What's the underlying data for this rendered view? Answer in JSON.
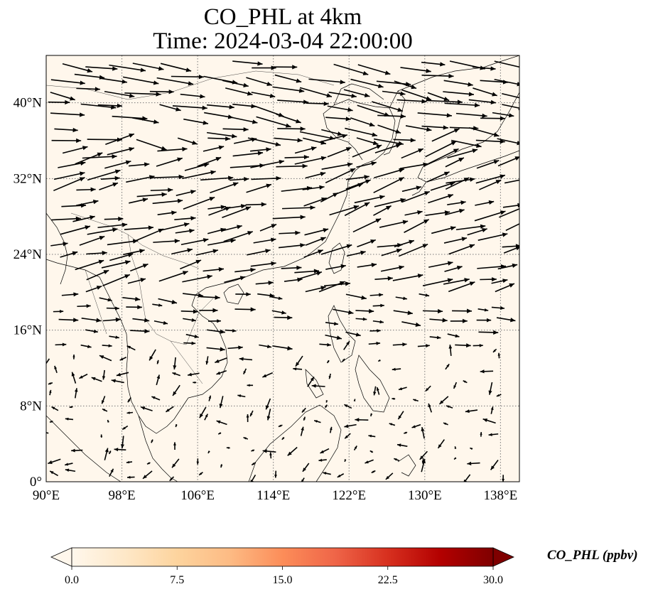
{
  "title_line1": "CO_PHL at 4km",
  "title_line2": "Time: 2024-03-04 22:00:00",
  "map": {
    "lon_range": [
      90,
      140
    ],
    "lat_range": [
      0,
      45
    ],
    "lon_ticks": [
      {
        "value": 90,
        "label": "90°E"
      },
      {
        "value": 98,
        "label": "98°E"
      },
      {
        "value": 106,
        "label": "106°E"
      },
      {
        "value": 114,
        "label": "114°E"
      },
      {
        "value": 122,
        "label": "122°E"
      },
      {
        "value": 130,
        "label": "130°E"
      },
      {
        "value": 138,
        "label": "138°E"
      }
    ],
    "lat_ticks": [
      {
        "value": 0,
        "label": "0°"
      },
      {
        "value": 8,
        "label": "8°N"
      },
      {
        "value": 16,
        "label": "16°N"
      },
      {
        "value": 24,
        "label": "24°N"
      },
      {
        "value": 32,
        "label": "32°N"
      },
      {
        "value": 40,
        "label": "40°N"
      }
    ],
    "gridlines": true,
    "field_color": "#fff7ec",
    "coastline_color": "#000000",
    "wind_vectors": "westerly flow, strongest north of 20°N; weak variable flow south of 16°N"
  },
  "colorbar": {
    "label": "CO_PHL (ppbv)",
    "min": 0.0,
    "max": 30.0,
    "extend": "both",
    "colormap": "OrRd",
    "ticks": [
      "0.0",
      "7.5",
      "15.0",
      "22.5",
      "30.0"
    ],
    "tick_values": [
      0.0,
      7.5,
      15.0,
      22.5,
      30.0
    ],
    "colors": [
      "#fff7ec",
      "#fee8c8",
      "#fdd49e",
      "#fdbb84",
      "#fc8d59",
      "#ef6548",
      "#d7301f",
      "#b30000",
      "#7f0000"
    ]
  }
}
